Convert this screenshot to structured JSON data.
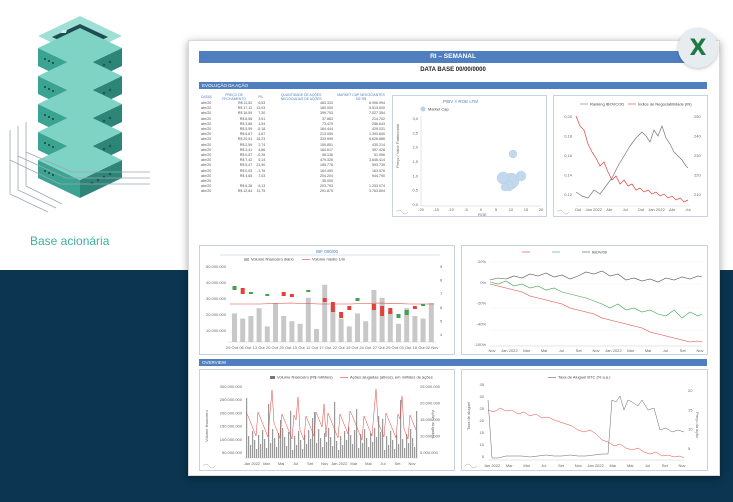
{
  "caption": "Base acionária",
  "report": {
    "title": "RI – SEMANAL",
    "date_line": "DATA BASE  00/00/0000"
  },
  "sections": {
    "evolucao": "EVOLUÇÃO DA AÇÃO",
    "overview": "OVERVIEW"
  },
  "table": {
    "headers": [
      "DATAS",
      "PREÇO DE FECHAMENTO",
      "P/L",
      "QUANTIDADE DE AÇÕES NEGOCIADAS DE AÇÕES",
      "MARKET CAP NEGOCIANTES DE R$"
    ],
    "rows": [
      [
        "abr/20",
        "R$ 11,52",
        "6,53",
        "483.333",
        "6.996.994"
      ],
      [
        "abr/20",
        "R$ 17,12",
        "13,03",
        "180.000",
        "5.513.000"
      ],
      [
        "abr/20",
        "R$ 16,59",
        "7,30",
        "399.753",
        "7.027.354"
      ],
      [
        "abr/20",
        "R$ 8,56",
        "3,91",
        "37.863",
        "214.702"
      ],
      [
        "abr/20",
        "R$ 3,86",
        "1,54",
        "73.479",
        "286.643"
      ],
      [
        "abr/20",
        "R$ 5,59",
        "-5,18",
        "184.444",
        "429.031"
      ],
      [
        "abr/20",
        "R$ 6,67",
        "4,87",
        "213.050",
        "1.393.840"
      ],
      [
        "abr/20",
        "R$ 20,91",
        "15,23",
        "333.999",
        "6.626.886"
      ],
      [
        "abr/20",
        "R$ 2,59",
        "2,74",
        "159.851",
        "430.214"
      ],
      [
        "abr/20",
        "R$ 3,41",
        "4,86",
        "184.617",
        "397.428"
      ],
      [
        "abr/20",
        "R$ 0,57",
        "-0,26",
        "96.136",
        "51.996"
      ],
      [
        "abr/20",
        "R$ 7,42",
        "5,14",
        "479.326",
        "3.646.414"
      ],
      [
        "abr/20",
        "R$ 5,47",
        "21,90",
        "185.776",
        "593.739"
      ],
      [
        "abr/20",
        "R$ 0,93",
        "-1,76",
        "164.490",
        "163.576"
      ],
      [
        "abr/20",
        "R$ 4,65",
        "7,03",
        "204.204",
        "944.790"
      ],
      [
        "abr/20",
        "",
        "",
        "35.000",
        ""
      ],
      [
        "abr/20",
        "R$ 6,28",
        "6,13",
        "203.793",
        "1.253.074"
      ],
      [
        "abr/20",
        "R$ 12,84",
        "11,75",
        "291.875",
        "3.763.894"
      ]
    ]
  },
  "charts": {
    "scatter": {
      "title": "P/BV × ROE LTM",
      "legend": "Market Cap",
      "ylabel": "Preço / Valor Patrimonial",
      "xlabel": "ROE",
      "yticks": [
        "3,0",
        "2,5",
        "2,0",
        "1,5",
        "1,0",
        "0,5",
        "0,0"
      ],
      "xticks": [
        "-20",
        "-15",
        "-10",
        "-5",
        "0",
        "5",
        "10",
        "15",
        "20"
      ]
    },
    "ranking": {
      "legend_a": "Ranking IBOVCOD",
      "legend_b": "Índice de Negociabilidade (IN)",
      "left_ticks": [
        "0,20",
        "0,18",
        "0,16",
        "0,14",
        "0,12"
      ],
      "right_ticks": [
        "250",
        "240",
        "230",
        "220",
        "210"
      ],
      "x_ticks": [
        "Out",
        "Jan 2022",
        "Abr",
        "Jul",
        "Out",
        "Jan 2022",
        "Abr",
        "Jul"
      ]
    },
    "volume": {
      "title": "IBF 000/00",
      "legend_a": "Volume financeiro diário",
      "legend_b": "Volume médio 1/m",
      "left_ticks": [
        "50.000.000",
        "40.000.000",
        "30.000.000",
        "20.000.000",
        "10.000.000"
      ],
      "right_ticks": [
        "9",
        "8",
        "7",
        "6",
        "5",
        "4"
      ],
      "x_ticks": [
        "29 Out",
        "06 Out",
        "13 Out",
        "20 Out",
        "29 Out",
        "15 Out",
        "12 Out",
        "17 Out",
        "22 Out",
        "19 Out",
        "24 Out",
        "27 Out",
        "29 Out",
        "03 Out",
        "18 Out",
        "02 Nov"
      ]
    },
    "relative": {
      "legend": "IBOV/00",
      "y_ticks": [
        "20%",
        "0%",
        "-20%",
        "-40%",
        "-100%"
      ],
      "x_ticks": [
        "Nov",
        "Jan 2022",
        "Mar",
        "Mai",
        "Jul",
        "Set",
        "Nov",
        "Jan 2022",
        "Mar",
        "Mai",
        "Jul",
        "Set",
        "Nov"
      ]
    },
    "turnover": {
      "legend_a": "Volume financeiro (R$ milhões)",
      "legend_b": "Ações alugadas (ativos), em milhões de ações",
      "left_ticks": [
        "300.000.000",
        "250.000.000",
        "200.000.000",
        "150.000.000",
        "100.000.000",
        "50.000.000"
      ],
      "right_ticks": [
        "25.000.000",
        "20.000.000",
        "15.000.000",
        "10.000.000",
        "5.000.000"
      ],
      "ylabel_left": "Volume financeiro",
      "ylabel_right": "Ações alugadas",
      "x_ticks": [
        "Jan 2022",
        "Mar",
        "Mai",
        "Jul",
        "Set",
        "Nov",
        "Jan 2022",
        "Mar",
        "Mai",
        "Jul",
        "Set",
        "Nov"
      ]
    },
    "lending": {
      "legend": "Taxa de Aluguel BTC (% a.a.)",
      "left_ticks": [
        "35",
        "30",
        "25",
        "20",
        "15",
        "10",
        "5"
      ],
      "right_ticks": [
        "20",
        "15",
        "10",
        "5"
      ],
      "ylabel_left": "Taxa de aluguel",
      "ylabel_right": "Preço da ação",
      "x_ticks": [
        "Jan 2022",
        "Mar",
        "Mai",
        "Jul",
        "Set",
        "Nov",
        "Jan 2022",
        "Mar",
        "Mai",
        "Jul",
        "Set",
        "Nov"
      ]
    }
  },
  "colors": {
    "navy": "#0b3550",
    "accent": "#3db29f",
    "header": "#4f7fbf",
    "red": "#e2413a",
    "green": "#3fa34d"
  }
}
